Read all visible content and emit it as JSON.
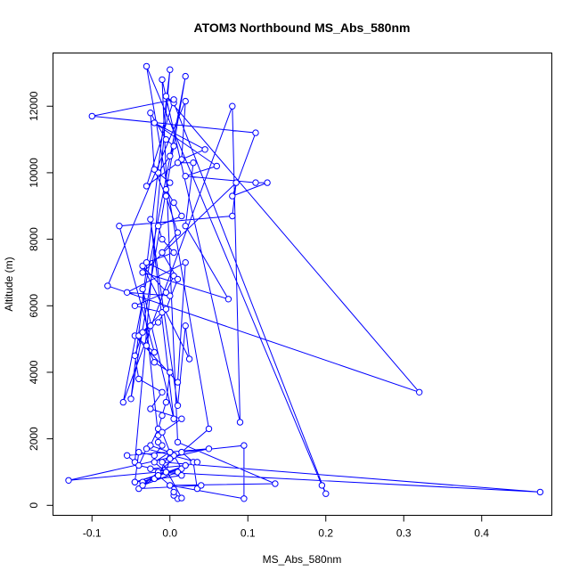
{
  "chart_data": {
    "type": "line",
    "title": "ATOM3 Northbound MS_Abs_580nm",
    "xlabel": "MS_Abs_580nm",
    "ylabel": "Altitude (m)",
    "xlim": [
      -0.15,
      0.49
    ],
    "ylim": [
      -300,
      13600
    ],
    "xticks": [
      -0.1,
      0.0,
      0.1,
      0.2,
      0.3,
      0.4
    ],
    "xtick_labels": [
      "-0.1",
      "0.0",
      "0.1",
      "0.2",
      "0.3",
      "0.4"
    ],
    "yticks": [
      0,
      2000,
      4000,
      6000,
      8000,
      10000,
      12000
    ],
    "ytick_labels": [
      "0",
      "2000",
      "4000",
      "6000",
      "8000",
      "10000",
      "12000"
    ],
    "grid": false,
    "legend": "none",
    "series": [
      {
        "color": "#0000ff",
        "marker": "open-circle",
        "x": [
          0.01,
          0.005,
          0.015,
          -0.01,
          0.475,
          -0.015,
          -0.13,
          0.05,
          -0.055,
          -0.045,
          0.0,
          -0.05,
          0.02,
          -0.06,
          0.08,
          0.09,
          -0.01,
          0.01,
          0.135,
          0.0,
          0.095,
          0.095,
          0.015,
          0.03,
          0.035,
          0.04,
          -0.04,
          0.05,
          -0.03,
          0.195,
          0.2,
          0.005,
          -0.005,
          0.32,
          -0.08,
          0.02,
          0.015,
          0.045,
          -0.02,
          0.06,
          0.02,
          0.11,
          0.125,
          0.08,
          0.11,
          -0.1,
          0.005,
          -0.03,
          0.01,
          0.03,
          0.02,
          0.075,
          -0.035,
          0.085,
          0.08,
          -0.065,
          -0.02,
          -0.045,
          0.01,
          0.02,
          -0.055,
          0.0,
          -0.035,
          0.025,
          0.02,
          0.01,
          -0.025,
          0.005,
          -0.035,
          -0.015,
          -0.015,
          -0.01,
          -0.02,
          -0.04,
          -0.045,
          0.015,
          0.005,
          0.0,
          -0.005,
          -0.035,
          -0.02,
          -0.035,
          0.01,
          -0.025,
          0.02,
          -0.015,
          0.0,
          -0.025,
          -0.015,
          -0.01,
          -0.005,
          0.0,
          -0.02,
          -0.03,
          -0.025,
          -0.04,
          -0.01,
          -0.045,
          -0.005,
          0.005,
          -0.03,
          0.005,
          -0.01,
          -0.015,
          0.015,
          0.005,
          -0.005,
          0.0,
          -0.015,
          0.0,
          0.005,
          -0.005,
          -0.025,
          -0.02,
          -0.005,
          0.01,
          -0.01,
          0.01,
          -0.005,
          -0.015,
          -0.035,
          -0.045,
          -0.04,
          -0.01,
          -0.025,
          0.015,
          -0.01,
          0.0,
          -0.02,
          -0.005,
          -0.045,
          0.015,
          -0.04,
          -0.03,
          0.035,
          -0.015,
          0.0,
          0.005
        ],
        "y": [
          200,
          300,
          220,
          1300,
          400,
          1000,
          750,
          1700,
          1500,
          1300,
          13100,
          3200,
          12900,
          3100,
          12000,
          2500,
          12800,
          1900,
          650,
          600,
          200,
          1800,
          1600,
          1300,
          500,
          600,
          500,
          2300,
          13200,
          600,
          350,
          12100,
          12300,
          3400,
          6600,
          12150,
          10400,
          10700,
          11500,
          10200,
          9900,
          9700,
          9700,
          9300,
          11200,
          11700,
          12200,
          9600,
          10300,
          10300,
          8400,
          6200,
          7000,
          9700,
          8700,
          8400,
          4600,
          5100,
          3700,
          7300,
          6400,
          6300,
          7200,
          4400,
          5400,
          3000,
          8600,
          2600,
          6500,
          2100,
          1900,
          1800,
          1500,
          1600,
          700,
          1100,
          1500,
          1400,
          1000,
          700,
          800,
          600,
          1000,
          1100,
          1200,
          900,
          1600,
          1800,
          2300,
          2700,
          3100,
          4000,
          4300,
          4800,
          5400,
          5100,
          5800,
          6000,
          6400,
          6900,
          7300,
          7600,
          8000,
          8400,
          8700,
          9100,
          9500,
          9700,
          10000,
          10500,
          10800,
          11000,
          11800,
          10100,
          9300,
          8200,
          7600,
          6800,
          5900,
          5500,
          5200,
          4500,
          3800,
          3400,
          2900,
          2600,
          2200,
          1600,
          1300,
          1000,
          700,
          900,
          1200,
          1700,
          1300,
          900,
          600,
          400
        ]
      }
    ]
  }
}
